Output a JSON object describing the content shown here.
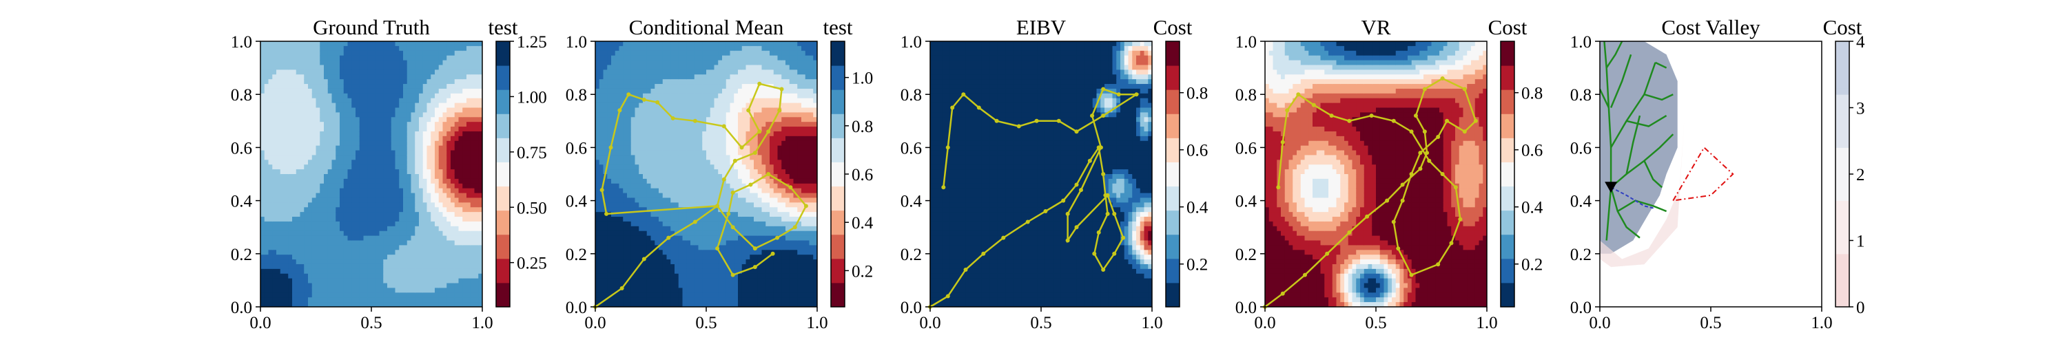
{
  "chart_data": [
    {
      "type": "heatmap",
      "title": "Ground Truth",
      "colorbar_label": "test",
      "xlim": [
        0,
        1
      ],
      "ylim": [
        0,
        1
      ],
      "xticks": [
        "0.0",
        "0.5",
        "1.0"
      ],
      "yticks": [
        "0.0",
        "0.2",
        "0.4",
        "0.6",
        "0.8",
        "1.0"
      ],
      "colorbar_ticks": [
        "0.25",
        "0.50",
        "0.75",
        "1.00",
        "1.25"
      ],
      "colorbar_tick_values": [
        0.25,
        0.5,
        0.75,
        1.0,
        1.25
      ],
      "colorbar_range": [
        0.05,
        1.25
      ],
      "colormap": "RdBu",
      "field_blobs": [
        {
          "x": 0.97,
          "y": 0.55,
          "sx": 0.17,
          "sy": 0.16,
          "amp": -1.05
        },
        {
          "x": 0.55,
          "y": 0.4,
          "sx": 0.2,
          "sy": 0.25,
          "amp": 0.25
        },
        {
          "x": 0.18,
          "y": 0.7,
          "sx": 0.18,
          "sy": 0.22,
          "amp": -0.25
        },
        {
          "x": 0.45,
          "y": 0.88,
          "sx": 0.15,
          "sy": 0.12,
          "amp": 0.2
        },
        {
          "x": 0.05,
          "y": 0.05,
          "sx": 0.1,
          "sy": 0.1,
          "amp": 0.3
        },
        {
          "x": 0.62,
          "y": 0.18,
          "sx": 0.16,
          "sy": 0.12,
          "amp": -0.2
        }
      ],
      "field_base": 0.95,
      "path": []
    },
    {
      "type": "heatmap",
      "title": "Conditional Mean",
      "colorbar_label": "test",
      "xlim": [
        0,
        1
      ],
      "ylim": [
        0,
        1
      ],
      "xticks": [
        "0.0",
        "0.5",
        "1.0"
      ],
      "yticks": [
        "0.0",
        "0.2",
        "0.4",
        "0.6",
        "0.8",
        "1.0"
      ],
      "colorbar_ticks": [
        "0.2",
        "0.4",
        "0.6",
        "0.8",
        "1.0"
      ],
      "colorbar_tick_values": [
        0.2,
        0.4,
        0.6,
        0.8,
        1.0
      ],
      "colorbar_range": [
        0.05,
        1.15
      ],
      "colormap": "RdBu",
      "field_blobs": [
        {
          "x": 0.97,
          "y": 0.55,
          "sx": 0.16,
          "sy": 0.15,
          "amp": -1.0
        },
        {
          "x": 0.72,
          "y": 0.72,
          "sx": 0.12,
          "sy": 0.18,
          "amp": -0.35
        },
        {
          "x": 0.35,
          "y": 0.55,
          "sx": 0.22,
          "sy": 0.3,
          "amp": -0.25
        },
        {
          "x": 0.15,
          "y": 0.15,
          "sx": 0.2,
          "sy": 0.2,
          "amp": 0.25
        },
        {
          "x": 0.85,
          "y": 0.1,
          "sx": 0.15,
          "sy": 0.12,
          "amp": 0.2
        }
      ],
      "field_base": 1.0,
      "path": [
        [
          0.0,
          0.0
        ],
        [
          0.12,
          0.07
        ],
        [
          0.22,
          0.18
        ],
        [
          0.33,
          0.26
        ],
        [
          0.45,
          0.32
        ],
        [
          0.55,
          0.38
        ],
        [
          0.58,
          0.48
        ],
        [
          0.63,
          0.55
        ],
        [
          0.72,
          0.58
        ],
        [
          0.78,
          0.66
        ],
        [
          0.83,
          0.74
        ],
        [
          0.84,
          0.82
        ],
        [
          0.74,
          0.84
        ],
        [
          0.69,
          0.74
        ],
        [
          0.74,
          0.66
        ],
        [
          0.66,
          0.6
        ],
        [
          0.58,
          0.68
        ],
        [
          0.45,
          0.7
        ],
        [
          0.35,
          0.71
        ],
        [
          0.28,
          0.77
        ],
        [
          0.22,
          0.78
        ],
        [
          0.15,
          0.8
        ],
        [
          0.11,
          0.74
        ],
        [
          0.07,
          0.6
        ],
        [
          0.03,
          0.44
        ],
        [
          0.05,
          0.35
        ],
        [
          0.55,
          0.38
        ],
        [
          0.62,
          0.3
        ],
        [
          0.72,
          0.22
        ],
        [
          0.82,
          0.26
        ],
        [
          0.9,
          0.3
        ],
        [
          0.95,
          0.38
        ],
        [
          0.88,
          0.45
        ],
        [
          0.78,
          0.5
        ],
        [
          0.7,
          0.46
        ],
        [
          0.62,
          0.43
        ],
        [
          0.6,
          0.35
        ],
        [
          0.55,
          0.22
        ],
        [
          0.62,
          0.12
        ],
        [
          0.72,
          0.15
        ],
        [
          0.8,
          0.2
        ]
      ]
    },
    {
      "type": "heatmap",
      "title": "EIBV",
      "colorbar_label": "Cost",
      "xlim": [
        0,
        1
      ],
      "ylim": [
        0,
        1
      ],
      "xticks": [
        "0.0",
        "0.5",
        "1.0"
      ],
      "yticks": [
        "0.0",
        "0.2",
        "0.4",
        "0.6",
        "0.8",
        "1.0"
      ],
      "colorbar_ticks": [
        "0.2",
        "0.4",
        "0.6",
        "0.8"
      ],
      "colorbar_tick_values": [
        0.2,
        0.4,
        0.6,
        0.8
      ],
      "colorbar_range": [
        0.05,
        0.98
      ],
      "colormap": "RdBu_r",
      "field_blobs": [
        {
          "x": 1.0,
          "y": 0.27,
          "sx": 0.07,
          "sy": 0.08,
          "amp": 0.93
        },
        {
          "x": 0.95,
          "y": 0.93,
          "sx": 0.07,
          "sy": 0.06,
          "amp": 0.8
        },
        {
          "x": 0.8,
          "y": 0.77,
          "sx": 0.04,
          "sy": 0.04,
          "amp": 0.45
        },
        {
          "x": 0.97,
          "y": 0.7,
          "sx": 0.03,
          "sy": 0.05,
          "amp": 0.4
        },
        {
          "x": 0.85,
          "y": 0.45,
          "sx": 0.05,
          "sy": 0.05,
          "amp": 0.35
        }
      ],
      "field_base": 0.0,
      "path": [
        [
          0.0,
          0.0
        ],
        [
          0.08,
          0.04
        ],
        [
          0.16,
          0.14
        ],
        [
          0.24,
          0.2
        ],
        [
          0.33,
          0.26
        ],
        [
          0.44,
          0.32
        ],
        [
          0.52,
          0.36
        ],
        [
          0.6,
          0.4
        ],
        [
          0.66,
          0.46
        ],
        [
          0.72,
          0.55
        ],
        [
          0.76,
          0.6
        ],
        [
          0.78,
          0.5
        ],
        [
          0.79,
          0.42
        ],
        [
          0.8,
          0.35
        ],
        [
          0.76,
          0.28
        ],
        [
          0.74,
          0.2
        ],
        [
          0.78,
          0.14
        ],
        [
          0.83,
          0.2
        ],
        [
          0.87,
          0.26
        ],
        [
          0.83,
          0.35
        ],
        [
          0.8,
          0.42
        ],
        [
          0.66,
          0.3
        ],
        [
          0.62,
          0.25
        ],
        [
          0.62,
          0.35
        ],
        [
          0.68,
          0.44
        ],
        [
          0.77,
          0.6
        ],
        [
          0.73,
          0.72
        ],
        [
          0.78,
          0.82
        ],
        [
          0.85,
          0.8
        ],
        [
          0.93,
          0.8
        ],
        [
          0.78,
          0.72
        ],
        [
          0.66,
          0.66
        ],
        [
          0.58,
          0.7
        ],
        [
          0.48,
          0.7
        ],
        [
          0.4,
          0.68
        ],
        [
          0.3,
          0.7
        ],
        [
          0.22,
          0.75
        ],
        [
          0.15,
          0.8
        ],
        [
          0.1,
          0.75
        ],
        [
          0.08,
          0.6
        ],
        [
          0.06,
          0.45
        ]
      ]
    },
    {
      "type": "heatmap",
      "title": "VR",
      "colorbar_label": "Cost",
      "xlim": [
        0,
        1
      ],
      "ylim": [
        0,
        1
      ],
      "xticks": [
        "0.0",
        "0.5",
        "1.0"
      ],
      "yticks": [
        "0.0",
        "0.2",
        "0.4",
        "0.6",
        "0.8",
        "1.0"
      ],
      "colorbar_ticks": [
        "0.2",
        "0.4",
        "0.6",
        "0.8"
      ],
      "colorbar_tick_values": [
        0.2,
        0.4,
        0.6,
        0.8
      ],
      "colorbar_range": [
        0.05,
        0.98
      ],
      "colormap": "RdBu_r",
      "field_blobs": [
        {
          "x": 0.5,
          "y": 1.0,
          "sx": 0.4,
          "sy": 0.12,
          "amp": -0.95
        },
        {
          "x": 0.48,
          "y": 0.08,
          "sx": 0.1,
          "sy": 0.08,
          "amp": -0.9
        },
        {
          "x": 0.25,
          "y": 0.45,
          "sx": 0.14,
          "sy": 0.14,
          "amp": -0.55
        },
        {
          "x": 0.92,
          "y": 0.5,
          "sx": 0.08,
          "sy": 0.18,
          "amp": -0.35
        },
        {
          "x": 0.05,
          "y": 0.8,
          "sx": 0.1,
          "sy": 0.1,
          "amp": -0.3
        }
      ],
      "field_base": 1.0,
      "path": [
        [
          0.0,
          0.0
        ],
        [
          0.08,
          0.05
        ],
        [
          0.18,
          0.12
        ],
        [
          0.28,
          0.2
        ],
        [
          0.38,
          0.28
        ],
        [
          0.46,
          0.34
        ],
        [
          0.55,
          0.4
        ],
        [
          0.62,
          0.46
        ],
        [
          0.7,
          0.52
        ],
        [
          0.73,
          0.58
        ],
        [
          0.72,
          0.66
        ],
        [
          0.68,
          0.72
        ],
        [
          0.72,
          0.82
        ],
        [
          0.8,
          0.86
        ],
        [
          0.9,
          0.82
        ],
        [
          0.95,
          0.7
        ],
        [
          0.9,
          0.66
        ],
        [
          0.82,
          0.7
        ],
        [
          0.78,
          0.64
        ],
        [
          0.7,
          0.58
        ],
        [
          0.66,
          0.5
        ],
        [
          0.62,
          0.4
        ],
        [
          0.58,
          0.32
        ],
        [
          0.6,
          0.22
        ],
        [
          0.66,
          0.12
        ],
        [
          0.78,
          0.16
        ],
        [
          0.84,
          0.24
        ],
        [
          0.88,
          0.33
        ],
        [
          0.86,
          0.45
        ],
        [
          0.8,
          0.5
        ],
        [
          0.74,
          0.55
        ],
        [
          0.66,
          0.66
        ],
        [
          0.58,
          0.7
        ],
        [
          0.48,
          0.72
        ],
        [
          0.38,
          0.7
        ],
        [
          0.3,
          0.72
        ],
        [
          0.22,
          0.76
        ],
        [
          0.15,
          0.8
        ],
        [
          0.1,
          0.74
        ],
        [
          0.08,
          0.62
        ],
        [
          0.06,
          0.45
        ]
      ]
    },
    {
      "type": "heatmap",
      "title": "Cost Valley",
      "colorbar_label": "Cost",
      "xlim": [
        0,
        1
      ],
      "ylim": [
        0,
        1
      ],
      "xticks": [
        "0.0",
        "0.5",
        "1.0"
      ],
      "yticks": [
        "0.0",
        "0.2",
        "0.4",
        "0.6",
        "0.8",
        "1.0"
      ],
      "colorbar_ticks": [
        "0",
        "1",
        "2",
        "3",
        "4"
      ],
      "colorbar_tick_values": [
        0,
        1,
        2,
        3,
        4
      ],
      "colorbar_range": [
        0,
        4
      ],
      "colormap": "BuPinkWhite",
      "field_blobs": [],
      "field_base": 0.0,
      "path": []
    }
  ]
}
